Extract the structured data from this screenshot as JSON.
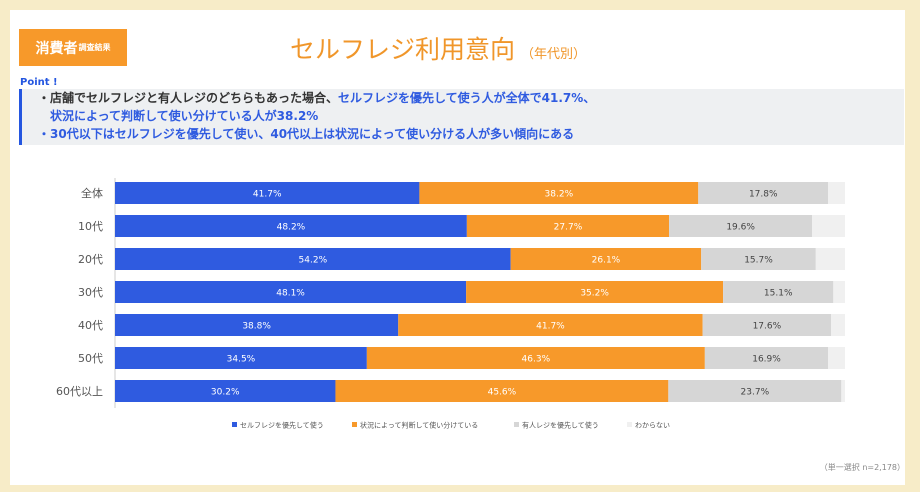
{
  "header": {
    "badge_main": "消費者",
    "badge_sub": "調査結果",
    "title": "セルフレジ利用意向",
    "title_sub": "（年代別）"
  },
  "point": {
    "label": "Point !",
    "line1_a": "・店舗でセルフレジと有人レジのどちらもあった場合、",
    "line1_b": "セルフレジを優先して使う人が全体で41.7%、",
    "line2": "状況によって判断して使い分けている人が38.2%",
    "line3": "・30代以下はセルフレジを優先して使い、40代以上は状況によって使い分ける人が多い傾向にある"
  },
  "note": "（単一選択 n=2,178）",
  "chart_data": {
    "type": "bar",
    "stacked": true,
    "orientation": "horizontal",
    "xlim": [
      0,
      100
    ],
    "categories": [
      "全体",
      "10代",
      "20代",
      "30代",
      "40代",
      "50代",
      "60代以上"
    ],
    "series": [
      {
        "name": "セルフレジを優先して使う",
        "color": "#2f5be0",
        "values": [
          41.7,
          48.2,
          54.2,
          48.1,
          38.8,
          34.5,
          30.2
        ]
      },
      {
        "name": "状況によって判断して使い分けている",
        "color": "#f7992a",
        "values": [
          38.2,
          27.7,
          26.1,
          35.2,
          41.7,
          46.3,
          45.6
        ]
      },
      {
        "name": "有人レジを優先して使う",
        "color": "#d6d6d6",
        "values": [
          17.8,
          19.6,
          15.7,
          15.1,
          17.6,
          16.9,
          23.7
        ]
      },
      {
        "name": "わからない",
        "color": "#f0f0f0",
        "values": [
          2.3,
          4.5,
          4.0,
          1.6,
          1.9,
          2.3,
          0.5
        ]
      }
    ],
    "legend": "bottom"
  }
}
